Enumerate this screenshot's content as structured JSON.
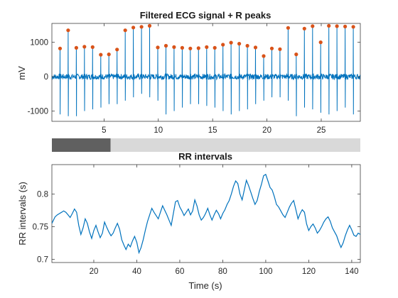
{
  "colors": {
    "signal": "#0072BD",
    "peaks": "#D95319",
    "slider_track": "#d9d9d9",
    "slider_thumb": "#606060"
  },
  "chart_data": [
    {
      "type": "line",
      "title": "Filtered ECG signal + R peaks",
      "ylabel": "mV",
      "xlabel": "",
      "xlim": [
        0.2,
        28.6
      ],
      "ylim": [
        -1300,
        1550
      ],
      "xticks": [
        5,
        10,
        15,
        20,
        25
      ],
      "yticks": [
        -1000,
        0,
        1000
      ],
      "ytick_labels": [
        "-1000",
        "0",
        "1000"
      ],
      "grid": false,
      "series": [
        {
          "name": "",
          "kind": "ecg",
          "beat_times": [
            0.95,
            1.7,
            2.45,
            3.2,
            3.95,
            4.7,
            5.45,
            6.2,
            6.95,
            7.7,
            8.45,
            9.2,
            9.95,
            10.7,
            11.45,
            12.2,
            12.95,
            13.7,
            14.45,
            15.2,
            15.95,
            16.7,
            17.45,
            18.2,
            18.95,
            19.7,
            20.45,
            21.2,
            21.95,
            22.7,
            23.45,
            24.2,
            24.95,
            25.7,
            26.45,
            27.2,
            27.95
          ]
        },
        {
          "name": "",
          "kind": "peaks",
          "x": [
            0.95,
            1.7,
            2.45,
            3.2,
            3.95,
            4.7,
            5.45,
            6.2,
            6.95,
            7.7,
            8.45,
            9.2,
            9.95,
            10.7,
            11.45,
            12.2,
            12.95,
            13.7,
            14.45,
            15.2,
            15.95,
            16.7,
            17.45,
            18.2,
            18.95,
            19.7,
            20.45,
            21.2,
            21.95,
            22.7,
            23.45,
            24.2,
            24.95,
            25.7,
            26.45,
            27.2,
            27.95
          ],
          "y": [
            820,
            1350,
            840,
            870,
            860,
            640,
            650,
            790,
            1350,
            1430,
            1450,
            1480,
            850,
            900,
            860,
            840,
            820,
            830,
            860,
            840,
            930,
            990,
            960,
            900,
            850,
            600,
            820,
            800,
            1420,
            650,
            1400,
            1470,
            1000,
            1480,
            1470,
            1460,
            1450
          ],
          "drop": [
            1100,
            1150,
            1150,
            1000,
            950,
            900,
            800,
            800,
            700,
            600,
            500,
            600,
            700,
            1100,
            1000,
            900,
            800,
            800,
            850,
            900,
            1000,
            1100,
            1000,
            950,
            800,
            700,
            600,
            600,
            700,
            1150,
            900,
            950,
            1050,
            1100,
            1000,
            900,
            1100
          ]
        }
      ],
      "slider": {
        "range": [
          0.2,
          28.6
        ],
        "thumb_start": 0.2,
        "thumb_end": 5.6
      }
    },
    {
      "type": "line",
      "title": "RR intervals",
      "xlabel": "Time (s)",
      "ylabel": "RR intervals (s)",
      "xlim": [
        0.5,
        144
      ],
      "ylim": [
        0.695,
        0.845
      ],
      "xticks": [
        20,
        40,
        60,
        80,
        100,
        120,
        140
      ],
      "yticks": [
        0.7,
        0.75,
        0.8
      ],
      "ytick_labels": [
        "0.7",
        "0.75",
        "0.8"
      ],
      "grid": false,
      "series": [
        {
          "name": "",
          "x": [
            0.5,
            2,
            3,
            4,
            5,
            6,
            7,
            8,
            9,
            10,
            11,
            12,
            13,
            14,
            15,
            16,
            17,
            18,
            19,
            20,
            21,
            22,
            23,
            24,
            25,
            26,
            27,
            28,
            29,
            30,
            31,
            32,
            33,
            34,
            35,
            36,
            37,
            38,
            39,
            40,
            41,
            42,
            43,
            44,
            45,
            46,
            47,
            48,
            49,
            50,
            51,
            52,
            53,
            54,
            55,
            56,
            57,
            58,
            59,
            60,
            61,
            62,
            63,
            64,
            65,
            66,
            67,
            68,
            69,
            70,
            71,
            72,
            73,
            74,
            75,
            76,
            77,
            78,
            79,
            80,
            81,
            82,
            83,
            84,
            85,
            86,
            87,
            88,
            89,
            90,
            91,
            92,
            93,
            94,
            95,
            96,
            97,
            98,
            99,
            100,
            101,
            102,
            103,
            104,
            105,
            106,
            107,
            108,
            109,
            110,
            111,
            112,
            113,
            114,
            115,
            116,
            117,
            118,
            119,
            120,
            121,
            122,
            123,
            124,
            125,
            126,
            127,
            128,
            129,
            130,
            131,
            132,
            133,
            134,
            135,
            136,
            137,
            138,
            139,
            140,
            141,
            142,
            143,
            144
          ],
          "y": [
            0.755,
            0.765,
            0.768,
            0.77,
            0.772,
            0.774,
            0.772,
            0.768,
            0.764,
            0.77,
            0.777,
            0.772,
            0.752,
            0.738,
            0.748,
            0.762,
            0.755,
            0.742,
            0.732,
            0.744,
            0.752,
            0.742,
            0.733,
            0.74,
            0.757,
            0.749,
            0.742,
            0.736,
            0.74,
            0.748,
            0.755,
            0.746,
            0.73,
            0.722,
            0.715,
            0.723,
            0.719,
            0.728,
            0.735,
            0.726,
            0.71,
            0.718,
            0.73,
            0.745,
            0.758,
            0.768,
            0.778,
            0.772,
            0.767,
            0.762,
            0.772,
            0.782,
            0.775,
            0.768,
            0.76,
            0.752,
            0.77,
            0.788,
            0.79,
            0.78,
            0.774,
            0.767,
            0.772,
            0.777,
            0.768,
            0.774,
            0.791,
            0.782,
            0.768,
            0.76,
            0.764,
            0.77,
            0.778,
            0.768,
            0.76,
            0.768,
            0.775,
            0.77,
            0.762,
            0.77,
            0.776,
            0.784,
            0.79,
            0.8,
            0.812,
            0.82,
            0.816,
            0.8,
            0.791,
            0.806,
            0.821,
            0.813,
            0.803,
            0.793,
            0.784,
            0.79,
            0.804,
            0.815,
            0.828,
            0.83,
            0.82,
            0.81,
            0.806,
            0.796,
            0.784,
            0.78,
            0.774,
            0.768,
            0.764,
            0.772,
            0.78,
            0.786,
            0.79,
            0.776,
            0.762,
            0.77,
            0.776,
            0.772,
            0.754,
            0.744,
            0.75,
            0.754,
            0.748,
            0.74,
            0.744,
            0.75,
            0.757,
            0.762,
            0.765,
            0.758,
            0.748,
            0.742,
            0.736,
            0.726,
            0.718,
            0.725,
            0.736,
            0.745,
            0.752,
            0.745,
            0.737,
            0.735,
            0.74,
            0.738
          ]
        }
      ]
    }
  ]
}
